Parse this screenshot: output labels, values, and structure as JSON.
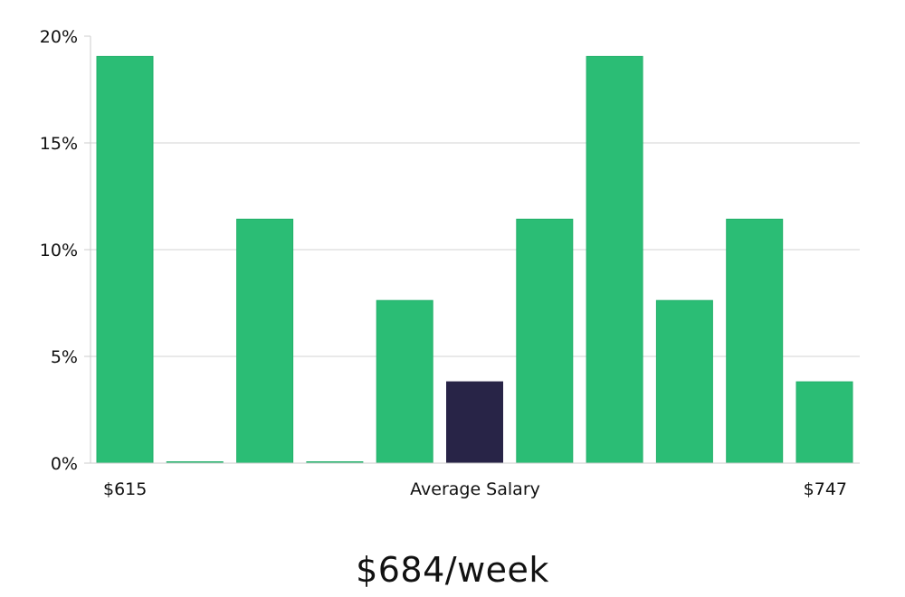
{
  "chart_data": {
    "type": "bar",
    "title": "",
    "xlabel": "Average Salary",
    "ylabel": "",
    "ylim": [
      0,
      20
    ],
    "y_ticks": [
      0,
      5,
      10,
      15,
      20
    ],
    "y_tick_labels": [
      "0%",
      "5%",
      "10%",
      "15%",
      "20%"
    ],
    "x_min_label": "$615",
    "x_max_label": "$747",
    "grid": true,
    "values": [
      19.05,
      0,
      11.43,
      0,
      7.62,
      3.81,
      11.43,
      19.05,
      7.62,
      11.43,
      3.81
    ],
    "highlight_index": 5
  },
  "colors": {
    "bar": "#2bbd75",
    "bar_edge": "#22b06a",
    "highlight": "#282447",
    "grid": "#e2e2e2",
    "axis": "#cccccc"
  },
  "caption": "$684/week"
}
